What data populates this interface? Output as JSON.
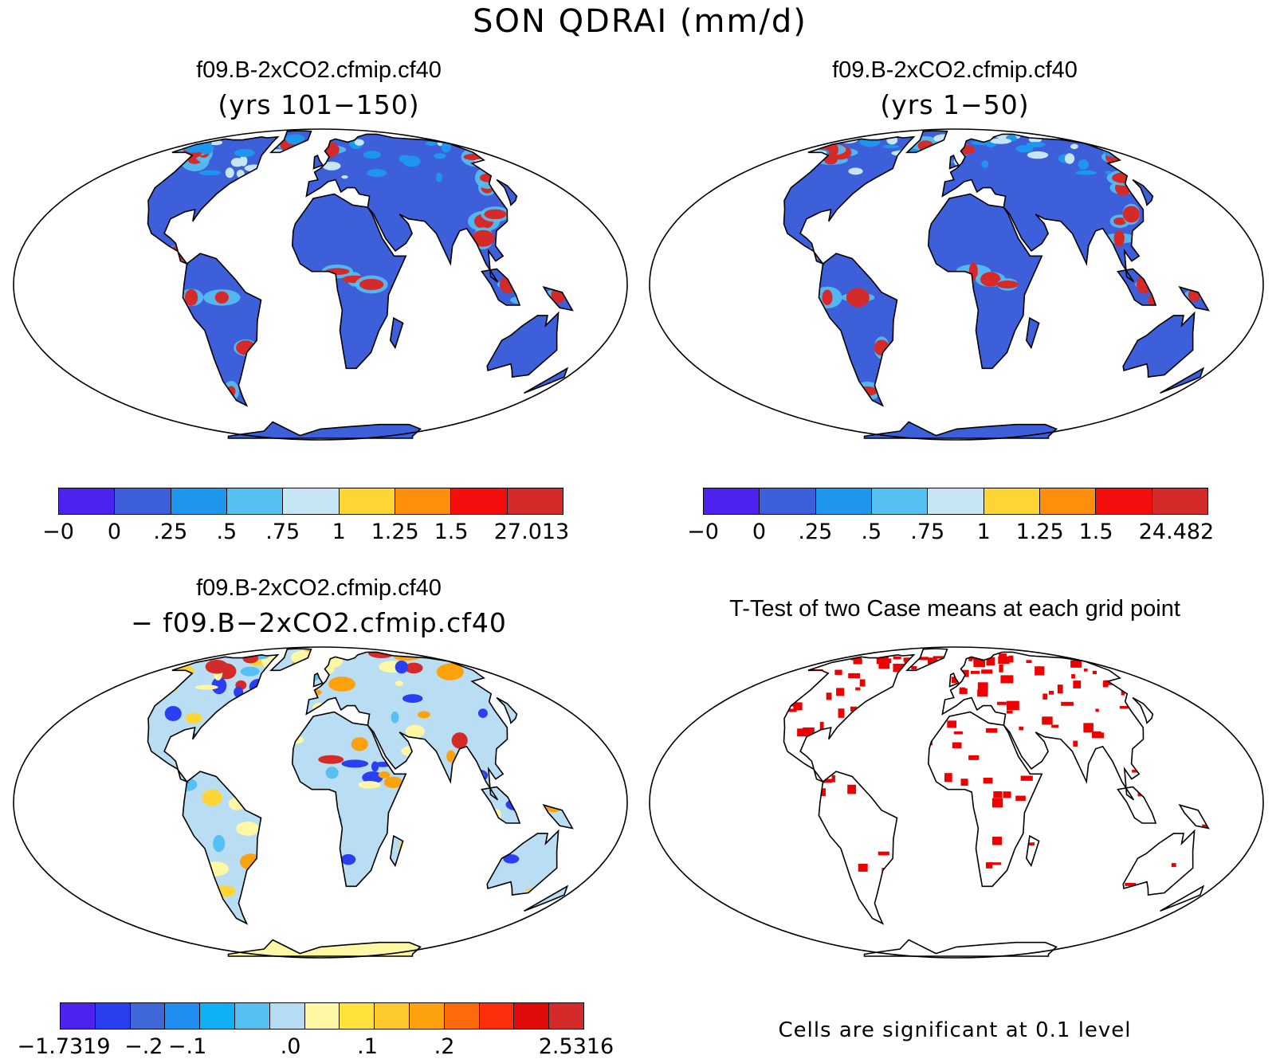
{
  "title": "SON QDRAI (mm/d)",
  "panels": [
    {
      "title": "f09.B-2xCO2.cfmip.cf40",
      "subtitle": "(yrs 101−150)",
      "land_color": "#3d5fd9",
      "colorbar": {
        "colors": [
          "#4d22ee",
          "#3d5fd9",
          "#1f96ee",
          "#55c0f2",
          "#c6e6f6",
          "#fdd535",
          "#fd8f0c",
          "#f40e0e",
          "#d42a2a"
        ],
        "ticks": [
          "−0",
          "0",
          ".25",
          ".5",
          ".75",
          "1",
          "1.25",
          "1.5",
          "27.013"
        ]
      }
    },
    {
      "title": "f09.B-2xCO2.cfmip.cf40",
      "subtitle": "(yrs 1−50)",
      "land_color": "#3d5fd9",
      "colorbar": {
        "colors": [
          "#4d22ee",
          "#3d5fd9",
          "#1f96ee",
          "#55c0f2",
          "#c6e6f6",
          "#fdd535",
          "#fd8f0c",
          "#f40e0e",
          "#d42a2a"
        ],
        "ticks": [
          "−0",
          "0",
          ".25",
          ".5",
          ".75",
          "1",
          "1.25",
          "1.5",
          "24.482"
        ]
      }
    },
    {
      "title": "f09.B-2xCO2.cfmip.cf40",
      "subtitle": "− f09.B−2xCO2.cfmip.cf40",
      "land_color": "#b9ddf2",
      "colorbar": {
        "colors": [
          "#4d22ee",
          "#2a3fef",
          "#3f67d8",
          "#1f8ef0",
          "#10b0f5",
          "#55c0f2",
          "#b6dcf3",
          "#fef8a4",
          "#fee33a",
          "#fdc92d",
          "#fda10c",
          "#fd6a0c",
          "#fd2e0c",
          "#e10a0a",
          "#d42a2a"
        ],
        "ticks": [
          "−1.7319",
          "−.2",
          "−.1",
          ".0",
          ".1",
          ".2",
          "2.5316"
        ]
      }
    },
    {
      "title": "T-Test of two Case means at each grid point",
      "land_color": "#ffffff",
      "sig_color": "#ee0000",
      "note": "Cells are significant at 0.1 level"
    }
  ]
}
